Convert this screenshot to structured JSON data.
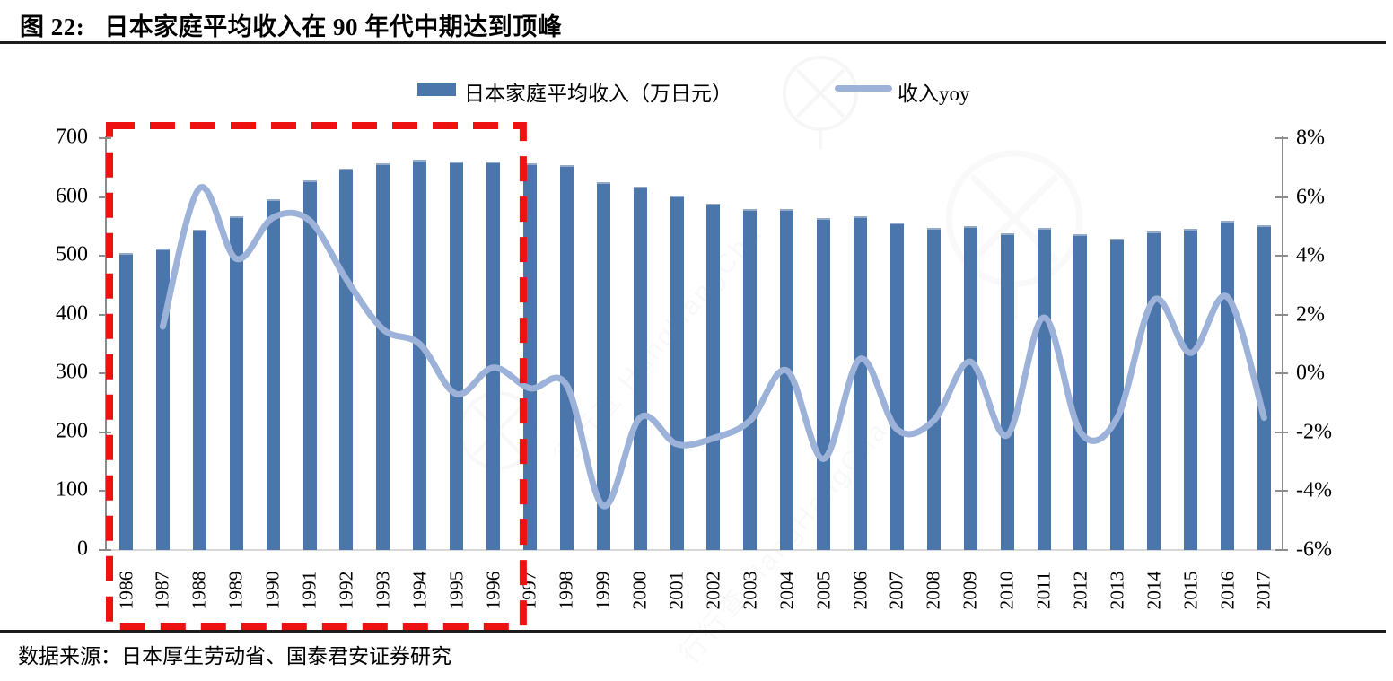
{
  "figure": {
    "number": "图 22:",
    "title": "日本家庭平均收入在 90 年代中期达到顶峰"
  },
  "legend": {
    "items": [
      {
        "label": "日本家庭平均收入（万日元）",
        "type": "bar"
      },
      {
        "label": "收入yoy",
        "type": "line"
      }
    ]
  },
  "source": {
    "text": "数据来源：日本厚生劳动省、国泰君安证券研究"
  },
  "watermark": {
    "brand": "行行查",
    "brand_latin": "HangHangCha"
  },
  "colors": {
    "bar": "#4b76ab",
    "bar_cap": "#92a9c8",
    "line": "#9db2d9",
    "highlight_box": "#ee1111",
    "axis": "#8c8c8c",
    "baseline": "#d8d8d8",
    "rule": "#1c1c1c",
    "text": "#000000"
  },
  "chart_data": {
    "type": "bar+line combo",
    "title": "日本家庭平均收入在 90 年代中期达到顶峰",
    "categories": [
      "1986",
      "1987",
      "1988",
      "1989",
      "1990",
      "1991",
      "1992",
      "1993",
      "1994",
      "1995",
      "1996",
      "1997",
      "1998",
      "1999",
      "2000",
      "2001",
      "2002",
      "2003",
      "2004",
      "2005",
      "2006",
      "2007",
      "2008",
      "2009",
      "2010",
      "2011",
      "2012",
      "2013",
      "2014",
      "2015",
      "2016",
      "2017"
    ],
    "series": [
      {
        "name": "日本家庭平均收入（万日元）",
        "type": "bar",
        "axis": "left",
        "values": [
          505,
          513,
          545,
          567,
          597,
          628,
          648,
          658,
          664,
          660,
          661,
          658,
          655,
          626,
          617,
          602,
          589,
          580,
          580,
          564,
          567,
          556,
          548,
          550,
          538,
          548,
          537,
          529,
          542,
          546,
          560,
          552
        ]
      },
      {
        "name": "收入yoy",
        "type": "line",
        "axis": "right",
        "unit": "%",
        "values": [
          null,
          1.6,
          6.3,
          3.9,
          5.3,
          5.2,
          3.2,
          1.5,
          1.0,
          -0.7,
          0.2,
          -0.5,
          -0.4,
          -4.5,
          -1.5,
          -2.4,
          -2.2,
          -1.6,
          0.1,
          -2.9,
          0.5,
          -1.9,
          -1.6,
          0.4,
          -2.1,
          1.9,
          -2.0,
          -1.5,
          2.5,
          0.7,
          2.6,
          -1.5
        ]
      }
    ],
    "left_axis": {
      "min": 0,
      "max": 700,
      "step": 100,
      "tick_labels": [
        "0",
        "100",
        "200",
        "300",
        "400",
        "500",
        "600",
        "700"
      ]
    },
    "right_axis": {
      "min": -6,
      "max": 8,
      "step": 2,
      "tick_labels": [
        "-6%",
        "-4%",
        "-2%",
        "0%",
        "2%",
        "4%",
        "6%",
        "8%"
      ]
    },
    "highlight_range": {
      "from": "1986",
      "to": "1996"
    },
    "grid": false,
    "legend_position": "top-center"
  }
}
